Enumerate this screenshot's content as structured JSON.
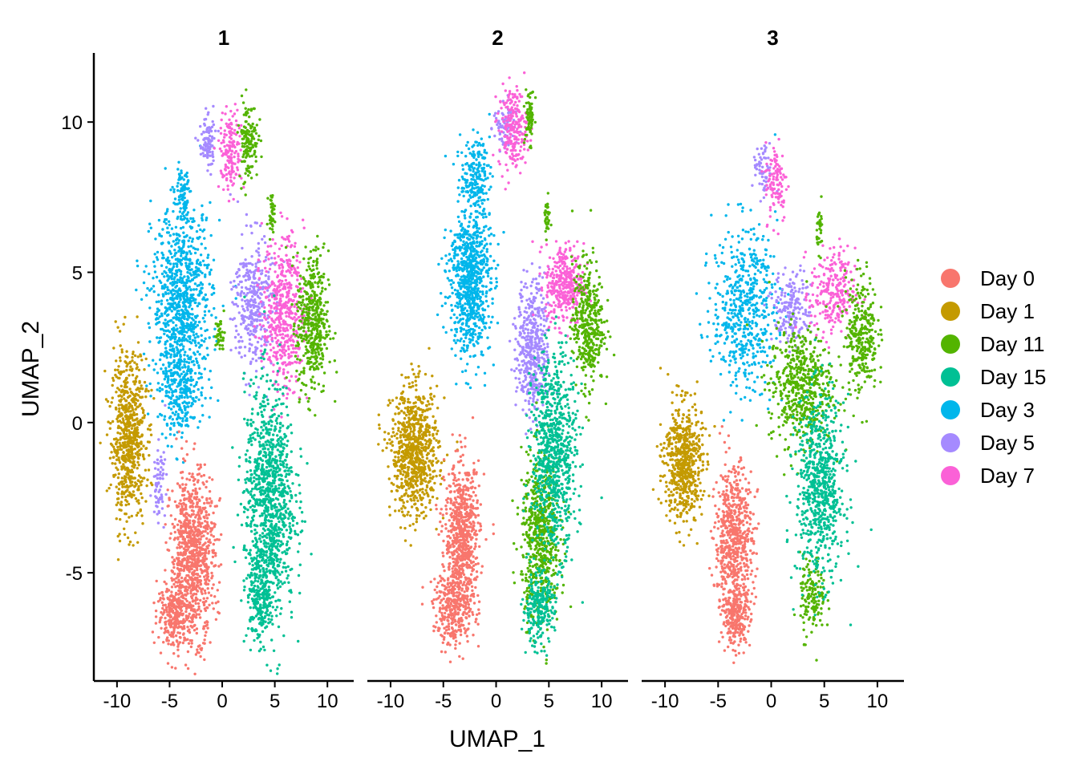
{
  "chart_data": {
    "type": "scatter",
    "xlabel": "UMAP_1",
    "ylabel": "UMAP_2",
    "facets": [
      "1",
      "2",
      "3"
    ],
    "xlim": [
      -12.2,
      12.5
    ],
    "ylim": [
      -8.6,
      12.3
    ],
    "x_ticks": [
      -10,
      -5,
      0,
      5,
      10
    ],
    "x_tick_labels": [
      "-10",
      "-5",
      "0",
      "5",
      "10"
    ],
    "y_ticks": [
      -5,
      0,
      5,
      10
    ],
    "y_tick_labels": [
      "-5",
      "0",
      "5",
      "10"
    ],
    "legend_position": "right",
    "series": [
      {
        "name": "Day 0",
        "color": "#F8766D"
      },
      {
        "name": "Day 1",
        "color": "#C49A00"
      },
      {
        "name": "Day 11",
        "color": "#53B400"
      },
      {
        "name": "Day 15",
        "color": "#00C094"
      },
      {
        "name": "Day 3",
        "color": "#00B6EB"
      },
      {
        "name": "Day 5",
        "color": "#A58AFF"
      },
      {
        "name": "Day 7",
        "color": "#FB61D7"
      }
    ],
    "clusters": [
      {
        "facet": 0,
        "series": "Day 1",
        "cx": -8.9,
        "cy": -0.5,
        "sx": 1.1,
        "sy": 1.8,
        "n": 700
      },
      {
        "facet": 0,
        "series": "Day 3",
        "cx": -3.8,
        "cy": 4.0,
        "sx": 1.9,
        "sy": 2.1,
        "n": 900
      },
      {
        "facet": 0,
        "series": "Day 3",
        "cx": -4.0,
        "cy": 1.0,
        "sx": 1.3,
        "sy": 1.0,
        "n": 250
      },
      {
        "facet": 0,
        "series": "Day 3",
        "cx": -3.7,
        "cy": 7.6,
        "sx": 0.5,
        "sy": 0.6,
        "n": 80
      },
      {
        "facet": 0,
        "series": "Day 5",
        "cx": 2.9,
        "cy": 4.0,
        "sx": 1.2,
        "sy": 1.5,
        "n": 350
      },
      {
        "facet": 0,
        "series": "Day 5",
        "cx": -1.4,
        "cy": 9.3,
        "sx": 0.5,
        "sy": 0.6,
        "n": 100
      },
      {
        "facet": 0,
        "series": "Day 5",
        "cx": -6.0,
        "cy": -2.0,
        "sx": 0.4,
        "sy": 0.8,
        "n": 70
      },
      {
        "facet": 0,
        "series": "Day 7",
        "cx": 5.8,
        "cy": 3.7,
        "sx": 1.3,
        "sy": 1.7,
        "n": 500
      },
      {
        "facet": 0,
        "series": "Day 7",
        "cx": 0.8,
        "cy": 9.0,
        "sx": 0.7,
        "sy": 0.9,
        "n": 160
      },
      {
        "facet": 0,
        "series": "Day 11",
        "cx": 8.6,
        "cy": 3.3,
        "sx": 1.0,
        "sy": 1.6,
        "n": 450
      },
      {
        "facet": 0,
        "series": "Day 11",
        "cx": 2.5,
        "cy": 9.4,
        "sx": 0.6,
        "sy": 0.9,
        "n": 140
      },
      {
        "facet": 0,
        "series": "Day 11",
        "cx": 4.7,
        "cy": 7.0,
        "sx": 0.2,
        "sy": 0.4,
        "n": 40
      },
      {
        "facet": 0,
        "series": "Day 11",
        "cx": -0.2,
        "cy": 2.9,
        "sx": 0.3,
        "sy": 0.4,
        "n": 40
      },
      {
        "facet": 0,
        "series": "Day 15",
        "cx": 4.5,
        "cy": -2.5,
        "sx": 1.6,
        "sy": 2.5,
        "n": 1000
      },
      {
        "facet": 0,
        "series": "Day 15",
        "cx": 3.7,
        "cy": -5.8,
        "sx": 0.9,
        "sy": 1.0,
        "n": 250
      },
      {
        "facet": 0,
        "series": "Day 0",
        "cx": -2.8,
        "cy": -4.4,
        "sx": 1.4,
        "sy": 1.8,
        "n": 900
      },
      {
        "facet": 0,
        "series": "Day 0",
        "cx": -4.5,
        "cy": -6.4,
        "sx": 1.1,
        "sy": 0.7,
        "n": 250
      },
      {
        "facet": 1,
        "series": "Day 1",
        "cx": -7.7,
        "cy": -1.0,
        "sx": 1.5,
        "sy": 1.4,
        "n": 800
      },
      {
        "facet": 1,
        "series": "Day 3",
        "cx": -2.5,
        "cy": 4.8,
        "sx": 1.3,
        "sy": 1.7,
        "n": 800
      },
      {
        "facet": 1,
        "series": "Day 3",
        "cx": -2.0,
        "cy": 8.2,
        "sx": 0.9,
        "sy": 0.8,
        "n": 180
      },
      {
        "facet": 1,
        "series": "Day 5",
        "cx": 3.5,
        "cy": 2.5,
        "sx": 1.0,
        "sy": 1.5,
        "n": 450
      },
      {
        "facet": 1,
        "series": "Day 5",
        "cx": 0.8,
        "cy": 9.8,
        "sx": 0.7,
        "sy": 0.6,
        "n": 80
      },
      {
        "facet": 1,
        "series": "Day 7",
        "cx": 6.5,
        "cy": 4.6,
        "sx": 1.2,
        "sy": 0.9,
        "n": 350
      },
      {
        "facet": 1,
        "series": "Day 7",
        "cx": 1.6,
        "cy": 9.8,
        "sx": 0.9,
        "sy": 0.9,
        "n": 220
      },
      {
        "facet": 1,
        "series": "Day 11",
        "cx": 8.7,
        "cy": 3.3,
        "sx": 1.0,
        "sy": 1.4,
        "n": 400
      },
      {
        "facet": 1,
        "series": "Day 11",
        "cx": 4.2,
        "cy": -3.8,
        "sx": 1.2,
        "sy": 1.8,
        "n": 600
      },
      {
        "facet": 1,
        "series": "Day 11",
        "cx": 3.2,
        "cy": 10.2,
        "sx": 0.3,
        "sy": 0.6,
        "n": 70
      },
      {
        "facet": 1,
        "series": "Day 11",
        "cx": 4.8,
        "cy": 6.8,
        "sx": 0.2,
        "sy": 0.4,
        "n": 35
      },
      {
        "facet": 1,
        "series": "Day 15",
        "cx": 5.5,
        "cy": -1.0,
        "sx": 1.4,
        "sy": 2.2,
        "n": 800
      },
      {
        "facet": 1,
        "series": "Day 15",
        "cx": 4.0,
        "cy": -6.2,
        "sx": 1.0,
        "sy": 0.8,
        "n": 250
      },
      {
        "facet": 1,
        "series": "Day 0",
        "cx": -3.2,
        "cy": -3.8,
        "sx": 1.1,
        "sy": 1.6,
        "n": 700
      },
      {
        "facet": 1,
        "series": "Day 0",
        "cx": -4.0,
        "cy": -6.2,
        "sx": 1.3,
        "sy": 0.8,
        "n": 300
      },
      {
        "facet": 2,
        "series": "Day 1",
        "cx": -8.3,
        "cy": -1.3,
        "sx": 1.2,
        "sy": 1.3,
        "n": 600
      },
      {
        "facet": 2,
        "series": "Day 3",
        "cx": -2.5,
        "cy": 3.8,
        "sx": 2.0,
        "sy": 1.8,
        "n": 550
      },
      {
        "facet": 2,
        "series": "Day 5",
        "cx": 2.0,
        "cy": 3.8,
        "sx": 1.2,
        "sy": 0.8,
        "n": 200
      },
      {
        "facet": 2,
        "series": "Day 5",
        "cx": -0.8,
        "cy": 8.3,
        "sx": 0.6,
        "sy": 0.6,
        "n": 60
      },
      {
        "facet": 2,
        "series": "Day 7",
        "cx": 5.8,
        "cy": 4.3,
        "sx": 1.4,
        "sy": 1.0,
        "n": 250
      },
      {
        "facet": 2,
        "series": "Day 7",
        "cx": 0.5,
        "cy": 8.0,
        "sx": 0.7,
        "sy": 0.9,
        "n": 110
      },
      {
        "facet": 2,
        "series": "Day 11",
        "cx": 2.8,
        "cy": 1.2,
        "sx": 2.0,
        "sy": 1.3,
        "n": 550
      },
      {
        "facet": 2,
        "series": "Day 11",
        "cx": 8.5,
        "cy": 3.0,
        "sx": 1.0,
        "sy": 1.3,
        "n": 300
      },
      {
        "facet": 2,
        "series": "Day 11",
        "cx": 3.9,
        "cy": -5.8,
        "sx": 0.8,
        "sy": 0.9,
        "n": 150
      },
      {
        "facet": 2,
        "series": "Day 11",
        "cx": 4.6,
        "cy": 6.5,
        "sx": 0.2,
        "sy": 0.5,
        "n": 35
      },
      {
        "facet": 2,
        "series": "Day 15",
        "cx": 4.6,
        "cy": -2.2,
        "sx": 1.5,
        "sy": 2.0,
        "n": 700
      },
      {
        "facet": 2,
        "series": "Day 0",
        "cx": -3.5,
        "cy": -4.0,
        "sx": 1.2,
        "sy": 1.7,
        "n": 650
      },
      {
        "facet": 2,
        "series": "Day 0",
        "cx": -3.3,
        "cy": -6.5,
        "sx": 0.9,
        "sy": 0.6,
        "n": 200
      }
    ]
  }
}
